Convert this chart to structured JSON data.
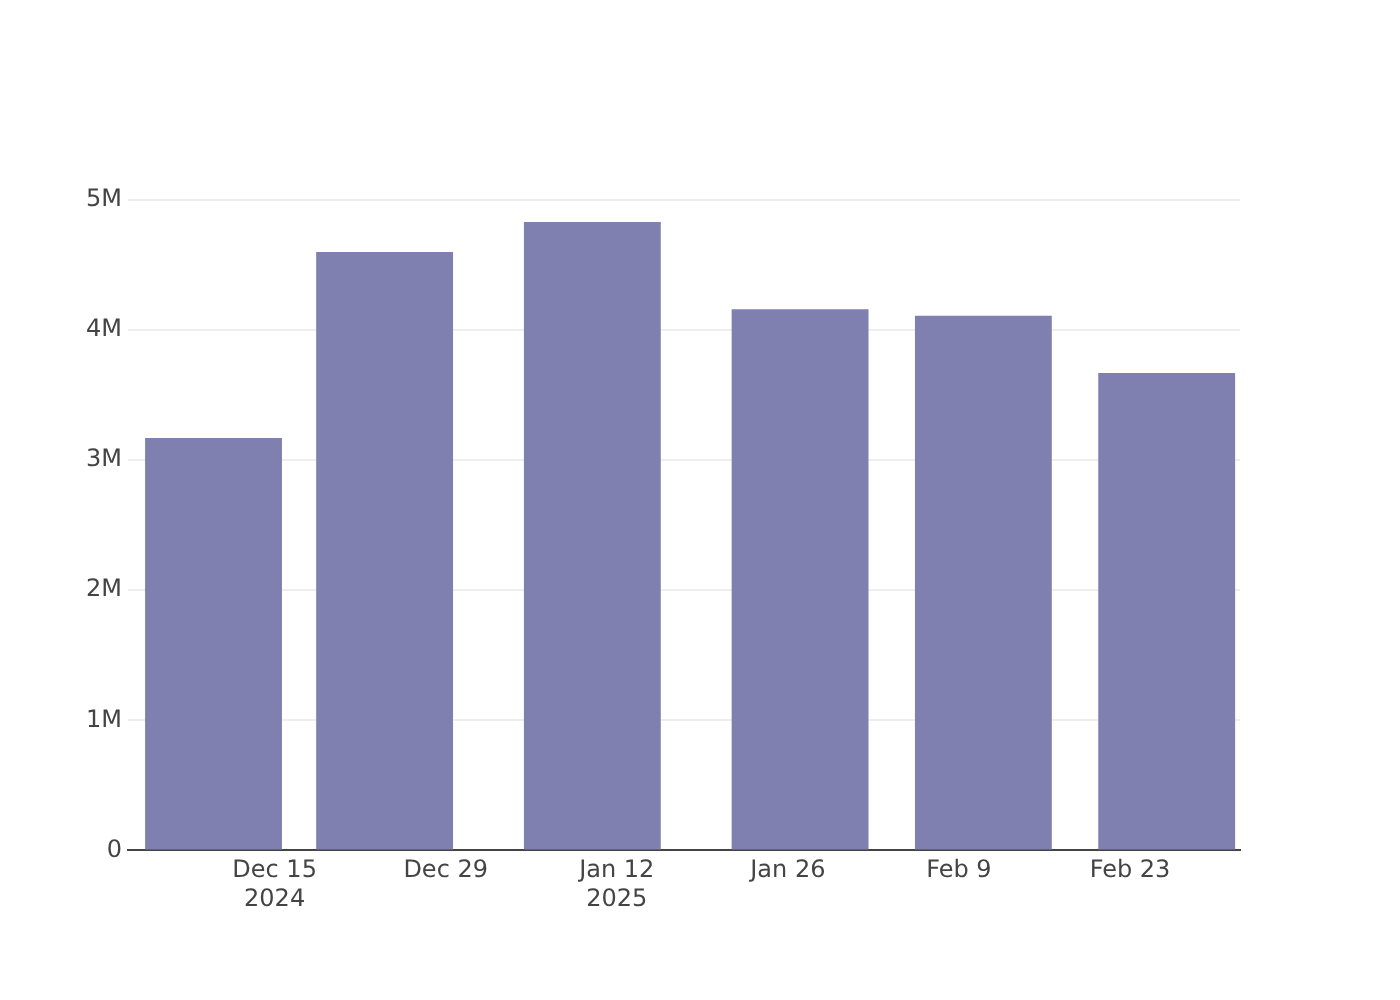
{
  "chart_data": {
    "type": "bar",
    "x": [
      "2024-12-10",
      "2024-12-24",
      "2025-01-10",
      "2025-01-27",
      "2025-02-11",
      "2025-02-26"
    ],
    "values": [
      3170000,
      4600000,
      4830000,
      4160000,
      4110000,
      3670000
    ],
    "color": "#7f7fb0",
    "xlim": [
      "2024-12-03",
      "2025-03-04"
    ],
    "xticks": [
      {
        "value": "2024-12-15",
        "label": "Dec 15\n2024"
      },
      {
        "value": "2024-12-29",
        "label": "Dec 29"
      },
      {
        "value": "2025-01-12",
        "label": "Jan 12\n2025"
      },
      {
        "value": "2025-01-26",
        "label": "Jan 26"
      },
      {
        "value": "2025-02-09",
        "label": "Feb 9"
      },
      {
        "value": "2025-02-23",
        "label": "Feb 23"
      }
    ],
    "ylim": [
      0,
      5000000
    ],
    "yticks": [
      {
        "value": 0,
        "label": "0"
      },
      {
        "value": 1000000,
        "label": "1M"
      },
      {
        "value": 2000000,
        "label": "2M"
      },
      {
        "value": 3000000,
        "label": "3M"
      },
      {
        "value": 4000000,
        "label": "4M"
      },
      {
        "value": 5000000,
        "label": "5M"
      }
    ],
    "grid": "y"
  }
}
